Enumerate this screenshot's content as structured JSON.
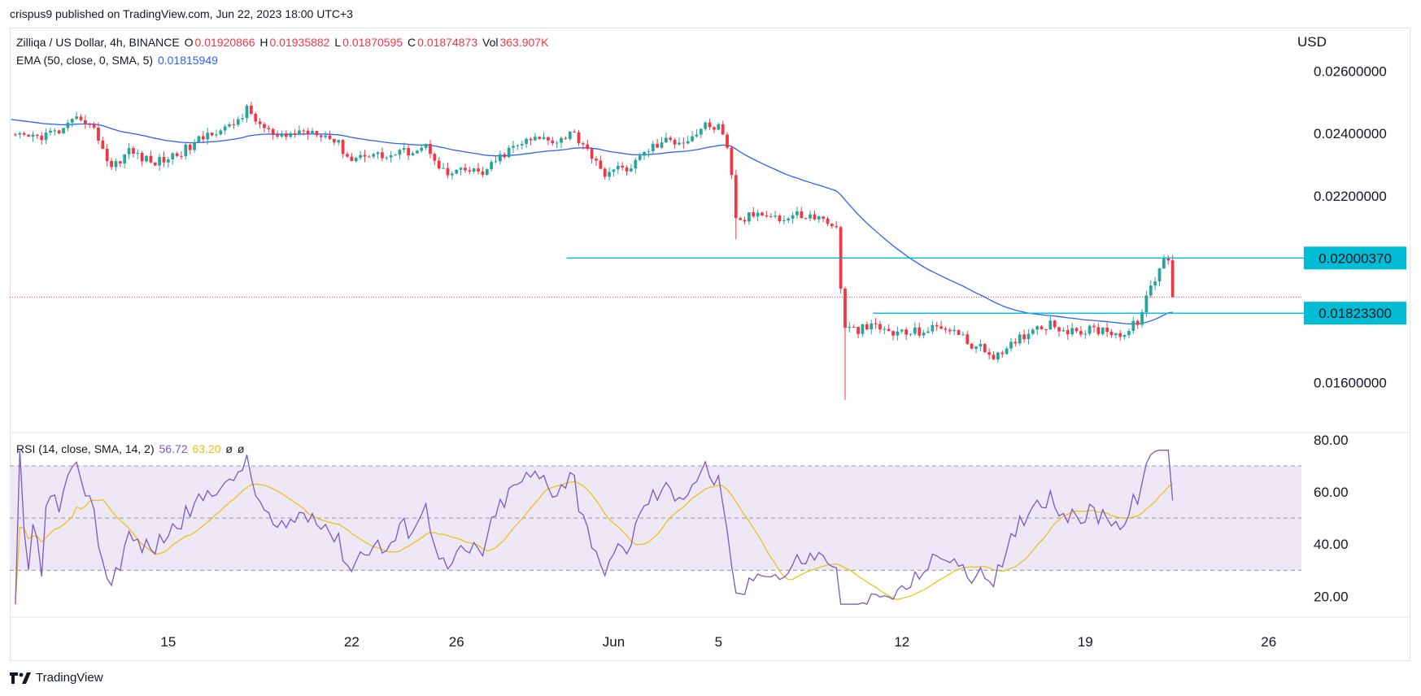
{
  "header": {
    "published": "crispus9 published on TradingView.com, Jun 22, 2023 18:00 UTC+3"
  },
  "legend": {
    "symbol": "Zilliqa / US Dollar, 4h, BINANCE",
    "o_label": "O",
    "o_value": "0.01920866",
    "h_label": "H",
    "h_value": "0.01935882",
    "l_label": "L",
    "l_value": "0.01870595",
    "c_label": "C",
    "c_value": "0.01874873",
    "vol_label": "Vol",
    "vol_value": "363.907K",
    "ema_label": "EMA (50, close, 0, SMA, 5)",
    "ema_value": "0.01815949",
    "rsi_label": "RSI (14, close, SMA, 14, 2)",
    "rsi_value": "56.72",
    "rsi_sma_value": "63.20",
    "rsi_na1": "ø",
    "rsi_na2": "ø"
  },
  "footer": {
    "brand": "TradingView"
  },
  "colors": {
    "up": "#26a69a",
    "down": "#f23645",
    "ema": "#2962ff",
    "level": "#00bcd4",
    "rsi": "#7e57c2",
    "rsi_sma": "#e8c10a",
    "rsi_band": "#ede7f6"
  },
  "chart_data": [
    {
      "type": "candlestick",
      "title": "Zilliqa / US Dollar, 4h, BINANCE",
      "ylabel": "USD",
      "ylim": [
        0.0144,
        0.0274
      ],
      "y_ticks": [
        "0.02600000",
        "0.02400000",
        "0.02200000",
        "0.01600000"
      ],
      "x_ticks": [
        {
          "label": "15",
          "x": 15
        },
        {
          "label": "22",
          "x": 22
        },
        {
          "label": "26",
          "x": 26
        },
        {
          "label": "Jun",
          "x": 32
        },
        {
          "label": "5",
          "x": 36
        },
        {
          "label": "12",
          "x": 43
        },
        {
          "label": "19",
          "x": 50
        },
        {
          "label": "26",
          "x": 57
        }
      ],
      "x_range": [
        8.95,
        58.25
      ],
      "last_price": 0.01874873,
      "levels": [
        {
          "label": "0.02000370",
          "value": 0.0200037,
          "from_x": 30.2
        },
        {
          "label": "0.01823300",
          "value": 0.018233,
          "from_x": 41.9
        }
      ],
      "price_anchors": [
        [
          9.0,
          0.02385
        ],
        [
          10.0,
          0.0239
        ],
        [
          11.0,
          0.0241
        ],
        [
          11.7,
          0.02455
        ],
        [
          12.3,
          0.02395
        ],
        [
          12.8,
          0.0229
        ],
        [
          13.5,
          0.02345
        ],
        [
          14.4,
          0.02305
        ],
        [
          15.1,
          0.02325
        ],
        [
          15.8,
          0.02355
        ],
        [
          16.7,
          0.0241
        ],
        [
          17.3,
          0.02415
        ],
        [
          18.0,
          0.02475
        ],
        [
          18.6,
          0.0242
        ],
        [
          19.2,
          0.0238
        ],
        [
          19.9,
          0.02405
        ],
        [
          20.7,
          0.0241
        ],
        [
          21.4,
          0.02375
        ],
        [
          22.0,
          0.02315
        ],
        [
          22.6,
          0.0234
        ],
        [
          23.3,
          0.02325
        ],
        [
          24.2,
          0.02345
        ],
        [
          24.9,
          0.0236
        ],
        [
          25.6,
          0.02265
        ],
        [
          26.3,
          0.0228
        ],
        [
          27.1,
          0.02275
        ],
        [
          27.8,
          0.02335
        ],
        [
          28.5,
          0.0237
        ],
        [
          29.2,
          0.02385
        ],
        [
          29.9,
          0.0238
        ],
        [
          30.4,
          0.02405
        ],
        [
          31.0,
          0.02355
        ],
        [
          31.5,
          0.02275
        ],
        [
          32.0,
          0.0228
        ],
        [
          32.7,
          0.02295
        ],
        [
          33.3,
          0.0235
        ],
        [
          34.0,
          0.02375
        ],
        [
          34.8,
          0.0238
        ],
        [
          35.5,
          0.02425
        ],
        [
          36.0,
          0.0242
        ],
        [
          36.4,
          0.0233
        ],
        [
          36.7,
          0.0211
        ],
        [
          37.3,
          0.0214
        ],
        [
          37.9,
          0.0215
        ],
        [
          38.4,
          0.0212
        ],
        [
          39.0,
          0.0214
        ],
        [
          39.7,
          0.0213
        ],
        [
          40.2,
          0.0212
        ],
        [
          40.5,
          0.0209
        ],
        [
          40.8,
          0.0177
        ],
        [
          41.3,
          0.0177
        ],
        [
          42.0,
          0.0178
        ],
        [
          42.6,
          0.0176
        ],
        [
          43.3,
          0.0176
        ],
        [
          44.0,
          0.0177
        ],
        [
          44.8,
          0.0178
        ],
        [
          45.5,
          0.0173
        ],
        [
          46.2,
          0.017
        ],
        [
          46.8,
          0.0168
        ],
        [
          47.4,
          0.0174
        ],
        [
          48.1,
          0.0178
        ],
        [
          48.7,
          0.0179
        ],
        [
          49.5,
          0.0176
        ],
        [
          50.2,
          0.0177
        ],
        [
          50.9,
          0.0177
        ],
        [
          51.5,
          0.0175
        ],
        [
          52.0,
          0.018
        ],
        [
          52.6,
          0.0192
        ],
        [
          53.0,
          0.02
        ],
        [
          53.3,
          0.0197
        ],
        [
          53.4,
          0.0189
        ]
      ]
    },
    {
      "type": "line",
      "title": "RSI (14, close, SMA, 14, 2)",
      "ylim": [
        12.65,
        81.2
      ],
      "y_ticks": [
        "80.00",
        "60.00",
        "40.00",
        "20.00"
      ],
      "bands": [
        70,
        50,
        30
      ],
      "last_rsi": 56.72,
      "last_sma": 63.2
    }
  ]
}
